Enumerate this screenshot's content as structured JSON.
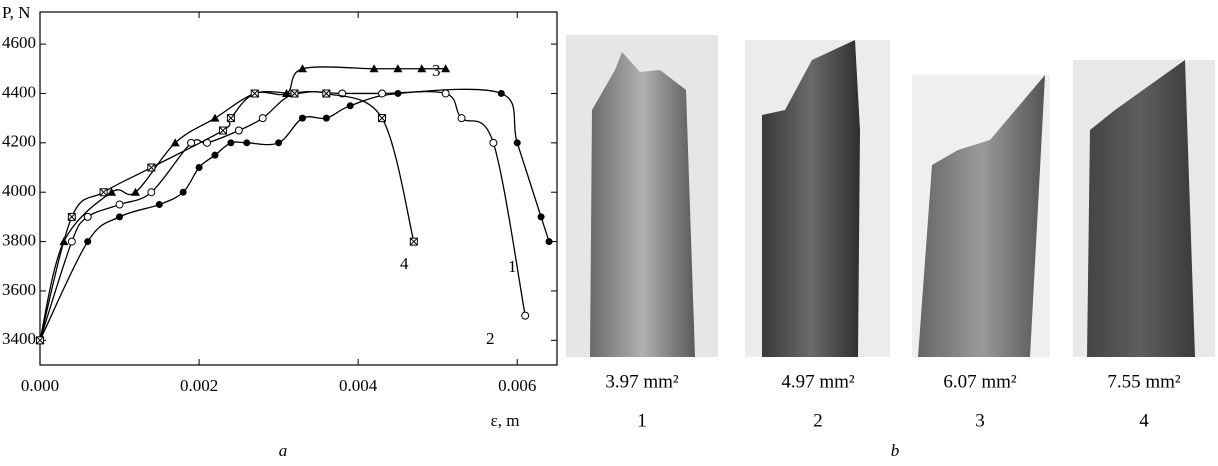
{
  "chart_data": {
    "type": "line",
    "ylabel": "P, N",
    "xlabel": "ε, m",
    "panel_label": "a",
    "xlim": [
      0,
      0.0065
    ],
    "ylim": [
      3300,
      4730
    ],
    "xticks": [
      {
        "value": 0,
        "label": "0.000"
      },
      {
        "value": 0.002,
        "label": "0.002"
      },
      {
        "value": 0.004,
        "label": "0.004"
      },
      {
        "value": 0.006,
        "label": "0.006"
      }
    ],
    "yticks": [
      3400,
      3600,
      3800,
      4000,
      4200,
      4400,
      4600
    ],
    "series": [
      {
        "name": "1",
        "color": "#000000",
        "marker": "filled-circle",
        "x": [
          0,
          0.0006,
          0.001,
          0.0015,
          0.0018,
          0.002,
          0.0022,
          0.0024,
          0.0026,
          0.003,
          0.0033,
          0.0036,
          0.0039,
          0.0045,
          0.0058,
          0.006,
          0.0063,
          0.0064
        ],
        "values": [
          3400,
          3800,
          3900,
          3950,
          4000,
          4100,
          4150,
          4200,
          4200,
          4200,
          4300,
          4300,
          4350,
          4400,
          4400,
          4200,
          3900,
          3800
        ]
      },
      {
        "name": "2",
        "color": "#000000",
        "marker": "open-circle",
        "x": [
          0,
          0.0004,
          0.0006,
          0.001,
          0.0014,
          0.0019,
          0.0021,
          0.0025,
          0.0028,
          0.0032,
          0.0038,
          0.0043,
          0.0051,
          0.0053,
          0.0057,
          0.0061
        ],
        "values": [
          3400,
          3800,
          3900,
          3950,
          4000,
          4200,
          4200,
          4250,
          4300,
          4400,
          4400,
          4400,
          4400,
          4300,
          4200,
          3500
        ]
      },
      {
        "name": "3",
        "color": "#000000",
        "marker": "triangle",
        "x": [
          0,
          0.0003,
          0.0009,
          0.0012,
          0.0017,
          0.0022,
          0.0027,
          0.0031,
          0.0033,
          0.0042,
          0.0045,
          0.0048,
          0.0051
        ],
        "values": [
          3400,
          3800,
          4000,
          4000,
          4200,
          4300,
          4400,
          4400,
          4500,
          4500,
          4500,
          4500,
          4500
        ]
      },
      {
        "name": "4",
        "color": "#000000",
        "marker": "crossed-square",
        "x": [
          0,
          0.0004,
          0.0008,
          0.0014,
          0.0023,
          0.0024,
          0.0027,
          0.0032,
          0.0036,
          0.0043,
          0.0047
        ],
        "values": [
          3400,
          3900,
          4000,
          4100,
          4250,
          4300,
          4400,
          4400,
          4400,
          4300,
          3800
        ]
      }
    ]
  },
  "photos": {
    "panel_label": "b",
    "items": [
      {
        "caption": "3.97 mm²",
        "number": "1"
      },
      {
        "caption": "4.97 mm²",
        "number": "2"
      },
      {
        "caption": "6.07 mm²",
        "number": "3"
      },
      {
        "caption": "7.55 mm²",
        "number": "4"
      }
    ]
  }
}
